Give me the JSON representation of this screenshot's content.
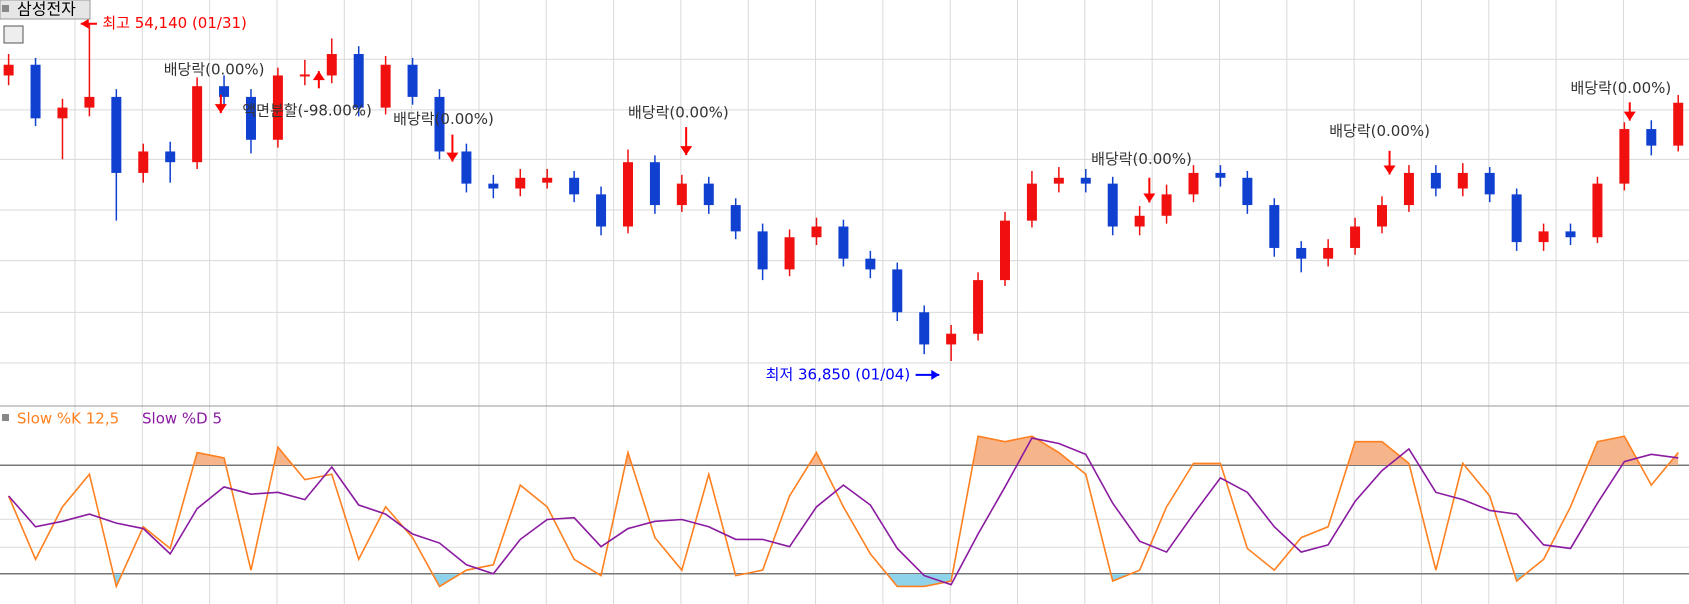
{
  "chart_data": [
    {
      "type": "candlestick",
      "title": "삼성전자",
      "up_color": "#f01010",
      "down_color": "#1040d0",
      "open": [
        51500,
        52050,
        49300,
        49850,
        50400,
        46500,
        47600,
        47050,
        50950,
        50400,
        48200,
        51450,
        51500,
        52600,
        49850,
        52050,
        50400,
        47600,
        45950,
        45700,
        46000,
        46250,
        45400,
        43750,
        47050,
        44850,
        45950,
        44850,
        43500,
        41550,
        43200,
        43750,
        42100,
        41550,
        39350,
        37700,
        38250,
        41000,
        44050,
        45950,
        46250,
        45950,
        43750,
        44300,
        45400,
        46500,
        46250,
        44850,
        42650,
        42100,
        42650,
        43750,
        44850,
        46500,
        45700,
        46500,
        45400,
        42950,
        43500,
        43200,
        45950,
        48750,
        47900
      ],
      "high": [
        52600,
        52400,
        50300,
        54140,
        50800,
        48000,
        48100,
        51400,
        51500,
        50800,
        51900,
        52300,
        53400,
        53000,
        52500,
        52400,
        50800,
        48000,
        46400,
        46700,
        46700,
        46600,
        45800,
        47700,
        47400,
        46400,
        46300,
        45200,
        43900,
        43600,
        44200,
        44100,
        42500,
        41900,
        39700,
        38700,
        41400,
        44500,
        46600,
        46800,
        46700,
        46300,
        44800,
        45900,
        46900,
        46900,
        46600,
        45200,
        43000,
        43100,
        44200,
        45300,
        46900,
        46900,
        47000,
        46800,
        45700,
        43900,
        43900,
        46300,
        49100,
        49200,
        50500
      ],
      "low": [
        51000,
        48900,
        47200,
        49400,
        44050,
        46000,
        46000,
        46700,
        49900,
        47500,
        47800,
        51000,
        51100,
        49400,
        49500,
        50000,
        47200,
        45500,
        45200,
        45300,
        45700,
        45000,
        43300,
        43400,
        44400,
        44500,
        44400,
        43100,
        41000,
        41200,
        42800,
        41700,
        41100,
        38900,
        37200,
        36850,
        37900,
        40700,
        43700,
        45500,
        45500,
        43300,
        43300,
        43900,
        45000,
        45800,
        44400,
        42200,
        41400,
        41700,
        42300,
        43400,
        44500,
        45300,
        45300,
        45000,
        42500,
        42500,
        42800,
        42900,
        45600,
        47400,
        47600
      ],
      "close": [
        52050,
        49300,
        49850,
        50400,
        46500,
        47600,
        47050,
        50950,
        50400,
        48200,
        51500,
        51550,
        52600,
        49850,
        52050,
        50400,
        47600,
        45950,
        45700,
        46250,
        46250,
        45400,
        43750,
        47050,
        44850,
        45950,
        44850,
        43500,
        41550,
        43200,
        43750,
        42100,
        41550,
        39350,
        37700,
        38250,
        41000,
        44050,
        45950,
        46250,
        45950,
        43750,
        44300,
        45400,
        46500,
        46250,
        44850,
        42650,
        42100,
        42650,
        43750,
        44850,
        46500,
        45700,
        46500,
        45400,
        42950,
        43500,
        43200,
        45950,
        48750,
        47900,
        50100
      ],
      "annotations": [
        "최고 54,140 (01/31)",
        "최저 36,850 (01/04)",
        "배당락(0.00%)",
        "액면분할(-98.00%)",
        "배당락(0.00%)",
        "배당락(0.00%)",
        "배당락(0.00%)",
        "배당락(0.00%)",
        "배당락(0.00%)"
      ]
    },
    {
      "type": "line",
      "ylim": [
        0,
        100
      ],
      "hlines": [
        20,
        80
      ],
      "series": [
        {
          "name": "Slow %K 12,5",
          "color": "#ff8020",
          "values": [
            63,
            28,
            57,
            75,
            13,
            46,
            34,
            87,
            84,
            22,
            90,
            72,
            75,
            28,
            57,
            40,
            13,
            22,
            25,
            69,
            57,
            28,
            19,
            87,
            40,
            22,
            75,
            19,
            22,
            63,
            87,
            57,
            31,
            13,
            13,
            16,
            96,
            93,
            96,
            87,
            75,
            16,
            22,
            57,
            81,
            81,
            34,
            22,
            40,
            46,
            93,
            93,
            81,
            22,
            81,
            63,
            16,
            28,
            57,
            93,
            96,
            69,
            87
          ]
        },
        {
          "name": "Slow %D 5",
          "color": "#8a1aa0",
          "values": [
            63,
            46,
            49,
            53,
            48,
            45,
            31,
            56,
            68,
            64,
            65,
            61,
            79,
            58,
            53,
            42,
            37,
            25,
            20,
            39,
            50,
            51,
            35,
            45,
            49,
            50,
            46,
            39,
            39,
            35,
            57,
            69,
            58,
            34,
            19,
            14,
            42,
            68,
            95,
            92,
            86,
            59,
            38,
            32,
            53,
            73,
            65,
            46,
            32,
            36,
            60,
            77,
            89,
            65,
            61,
            55,
            53,
            36,
            34,
            59,
            82,
            86,
            84
          ]
        }
      ]
    }
  ]
}
